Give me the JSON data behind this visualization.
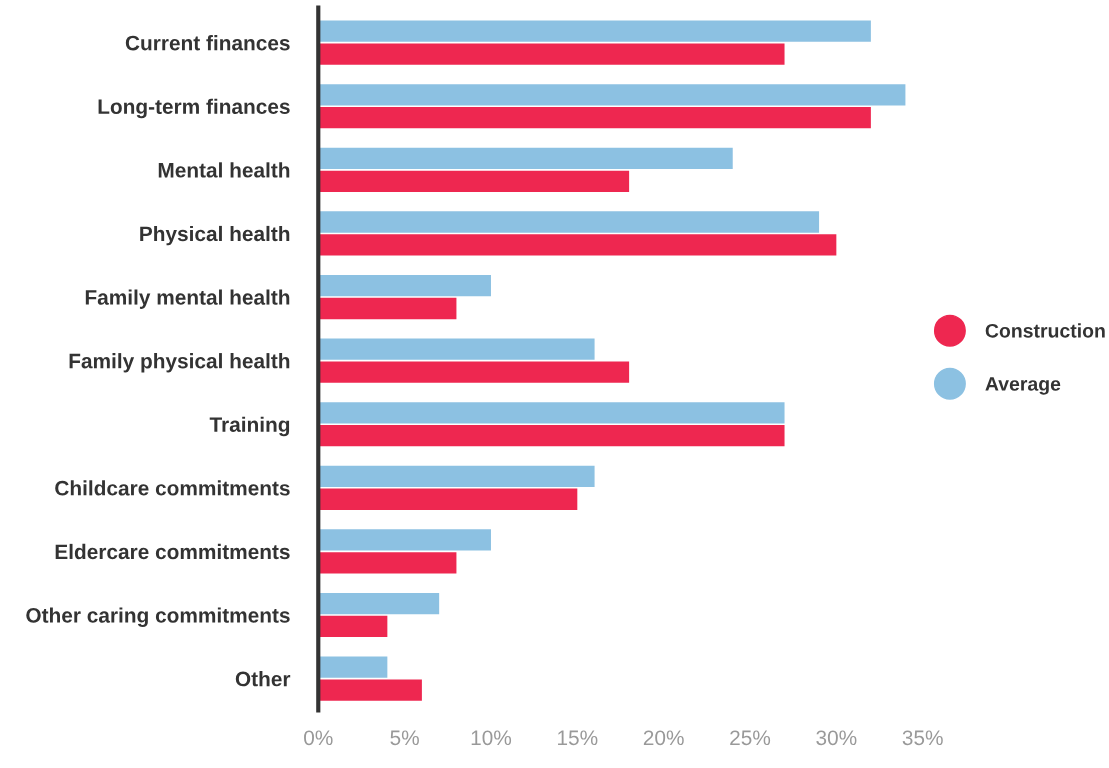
{
  "chart_data": {
    "type": "bar",
    "orientation": "horizontal",
    "categories": [
      "Current finances",
      "Long-term finances",
      "Mental health",
      "Physical health",
      "Family mental health",
      "Family physical health",
      "Training",
      "Childcare commitments",
      "Eldercare commitments",
      "Other caring commitments",
      "Other"
    ],
    "series": [
      {
        "name": "Construction",
        "color": "#ee2750",
        "values": [
          27,
          32,
          18,
          30,
          8,
          18,
          27,
          15,
          8,
          4,
          6
        ]
      },
      {
        "name": "Average",
        "color": "#8cc1e2",
        "values": [
          32,
          34,
          24,
          29,
          10,
          16,
          27,
          16,
          10,
          7,
          4
        ]
      }
    ],
    "xlim": [
      0,
      35
    ],
    "xticks": [
      {
        "value": 0,
        "label": "0%"
      },
      {
        "value": 5,
        "label": "5%"
      },
      {
        "value": 10,
        "label": "10%"
      },
      {
        "value": 15,
        "label": "15%"
      },
      {
        "value": 20,
        "label": "20%"
      },
      {
        "value": 25,
        "label": "25%"
      },
      {
        "value": 30,
        "label": "30%"
      },
      {
        "value": 35,
        "label": "35%"
      }
    ],
    "grid": false,
    "legend": "right",
    "marker": "circle"
  }
}
